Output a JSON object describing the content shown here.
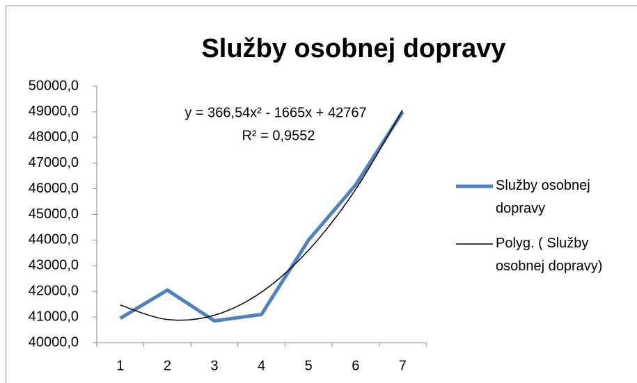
{
  "chart_data": {
    "type": "line",
    "title": "Služby osobnej dopravy",
    "categories": [
      "1",
      "2",
      "3",
      "4",
      "5",
      "6",
      "7"
    ],
    "series": [
      {
        "name": "Služby osobnej dopravy",
        "color": "#4f81bd",
        "values": [
          40950,
          42050,
          40850,
          41100,
          44000,
          46150,
          49000
        ]
      },
      {
        "name": "Polyg. ( Služby osobnej dopravy)",
        "color": "#000000",
        "values": [
          41468.5,
          40903.2,
          41070.9,
          41971.6,
          43605.5,
          45972.4,
          49072.5
        ]
      }
    ],
    "annotations": [
      "y = 366,54x² - 1665x + 42767",
      "R² = 0,9552"
    ],
    "ylim": [
      40000,
      50000
    ],
    "yticks": [
      {
        "value": 40000,
        "label": "40000,0"
      },
      {
        "value": 41000,
        "label": "41000,0"
      },
      {
        "value": 42000,
        "label": "42000,0"
      },
      {
        "value": 43000,
        "label": "43000,0"
      },
      {
        "value": 44000,
        "label": "44000,0"
      },
      {
        "value": 45000,
        "label": "45000,0"
      },
      {
        "value": 46000,
        "label": "46000,0"
      },
      {
        "value": 47000,
        "label": "47000,0"
      },
      {
        "value": 48000,
        "label": "48000,0"
      },
      {
        "value": 49000,
        "label": "49000,0"
      },
      {
        "value": 50000,
        "label": "50000,0"
      }
    ],
    "grid": false,
    "legend": "right"
  }
}
